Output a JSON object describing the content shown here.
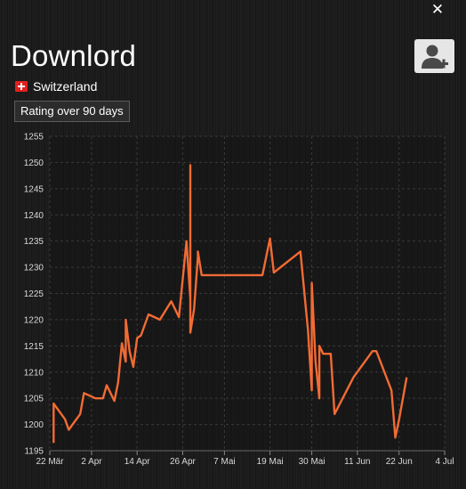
{
  "window": {
    "close_label": "✕"
  },
  "player": {
    "name": "Downlord",
    "country": "Switzerland"
  },
  "tabs": {
    "rating_label": "Rating over 90 days"
  },
  "icons": {
    "add_user": "add-user-icon",
    "flag": "swiss-flag-icon",
    "close": "close-icon"
  },
  "colors": {
    "line": "#f26b34"
  },
  "chart_data": {
    "type": "line",
    "ylim": [
      1195,
      1255
    ],
    "yticks": [
      1195,
      1200,
      1205,
      1210,
      1215,
      1220,
      1225,
      1230,
      1235,
      1240,
      1245,
      1250,
      1255
    ],
    "x_ticks": [
      "22 Mär",
      "2 Apr",
      "14 Apr",
      "26 Apr",
      "7 Mai",
      "19 Mai",
      "30 Mai",
      "11 Jun",
      "22 Jun",
      "4 Jul"
    ],
    "grid": true,
    "series": [
      {
        "x": [
          "2016-03-23",
          "2016-03-23",
          "2016-03-26",
          "2016-03-27",
          "2016-03-30",
          "2016-03-31",
          "2016-04-03",
          "2016-04-04",
          "2016-04-05",
          "2016-04-06",
          "2016-04-08",
          "2016-04-09",
          "2016-04-10",
          "2016-04-11",
          "2016-04-11",
          "2016-04-12",
          "2016-04-13",
          "2016-04-14",
          "2016-04-15",
          "2016-04-17",
          "2016-04-20",
          "2016-04-23",
          "2016-04-25",
          "2016-04-27",
          "2016-04-28",
          "2016-04-28",
          "2016-04-28",
          "2016-04-29",
          "2016-04-30",
          "2016-04-30",
          "2016-05-01",
          "2016-05-02",
          "2016-05-02",
          "2016-05-03",
          "2016-05-17",
          "2016-05-19",
          "2016-05-20",
          "2016-05-27",
          "2016-05-29",
          "2016-05-30",
          "2016-05-30",
          "2016-05-31",
          "2016-06-01",
          "2016-06-01",
          "2016-06-02",
          "2016-06-04",
          "2016-06-05",
          "2016-06-10",
          "2016-06-15",
          "2016-06-16",
          "2016-06-20",
          "2016-06-21",
          "2016-06-22",
          "2016-06-24"
        ],
        "values": [
          1196.5,
          1204,
          1201,
          1199,
          1202,
          1206,
          1205,
          1205,
          1205,
          1207.5,
          1204.5,
          1208,
          1215.5,
          1212,
          1220,
          1214,
          1211,
          1216.5,
          1217,
          1221,
          1220,
          1223.5,
          1220.5,
          1235,
          1224,
          1249.5,
          1217.5,
          1222,
          1232,
          1233,
          1228.5,
          1228.5,
          1228.5,
          1228.5,
          1228.5,
          1235.5,
          1229,
          1233,
          1218,
          1206.5,
          1227,
          1212,
          1205,
          1215,
          1213.5,
          1213.5,
          1202,
          1209,
          1214,
          1214,
          1206.5,
          1197.5,
          1201,
          1209
        ]
      }
    ]
  }
}
